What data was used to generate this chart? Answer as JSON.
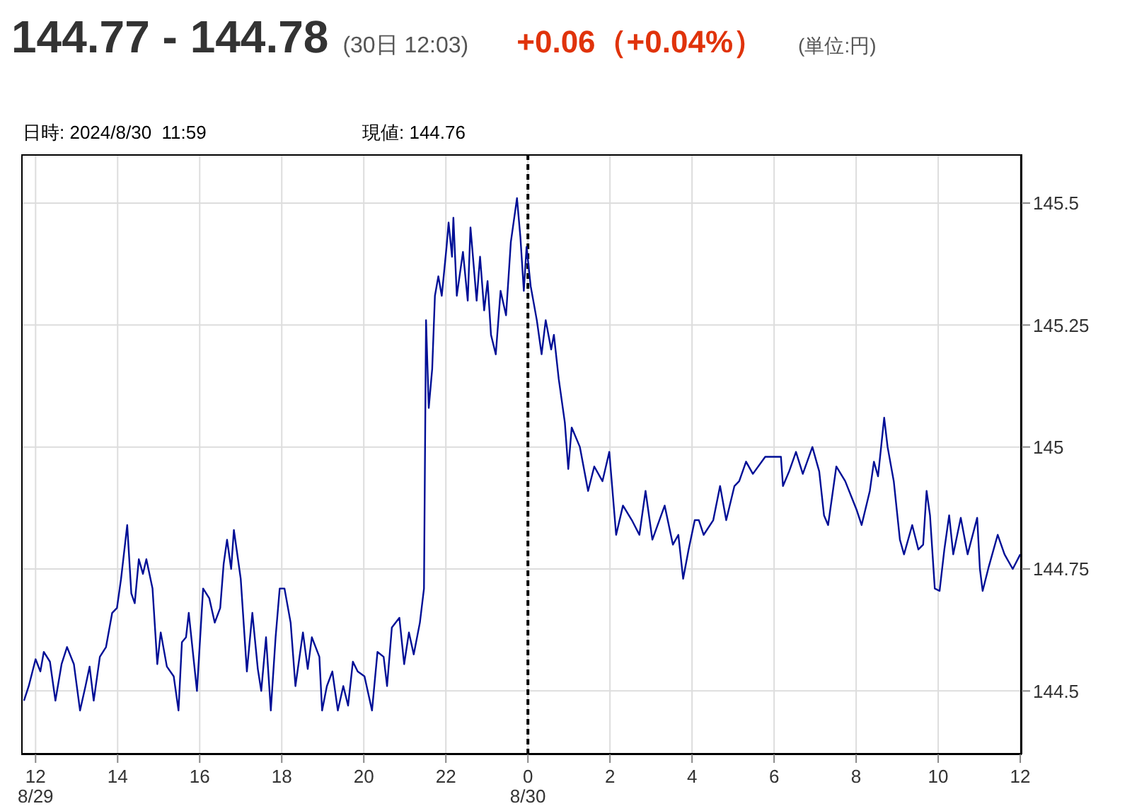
{
  "chart_data": {
    "type": "line",
    "title": "144.77 - 144.78",
    "subtitle": "(30日 12:03)",
    "annotations": [
      "+0.06（+0.04%）",
      "(単位:円)",
      "日時: 2024/8/30  11:59",
      "現値: 144.76"
    ],
    "xlim": [
      "2024-08-29T11:39",
      "2024-08-30T12:02"
    ],
    "ylim": [
      144.37,
      145.6
    ],
    "xticks": [
      {
        "value": "2024-08-29T12:00",
        "label": "12\n8/29"
      },
      {
        "value": "2024-08-29T14:00",
        "label": "14"
      },
      {
        "value": "2024-08-29T16:00",
        "label": "16"
      },
      {
        "value": "2024-08-29T18:00",
        "label": "18"
      },
      {
        "value": "2024-08-29T20:00",
        "label": "20"
      },
      {
        "value": "2024-08-29T22:00",
        "label": "22"
      },
      {
        "value": "2024-08-30T00:00",
        "label": "0\n8/30"
      },
      {
        "value": "2024-08-30T02:00",
        "label": "2"
      },
      {
        "value": "2024-08-30T04:00",
        "label": "4"
      },
      {
        "value": "2024-08-30T06:00",
        "label": "6"
      },
      {
        "value": "2024-08-30T08:00",
        "label": "8"
      },
      {
        "value": "2024-08-30T10:00",
        "label": "10"
      },
      {
        "value": "2024-08-30T12:00",
        "label": "12"
      }
    ],
    "yticks": [
      144.5,
      144.75,
      145,
      145.25,
      145.5
    ],
    "grid": true,
    "marker": "none",
    "line_style": "solid",
    "ref_lines": [
      {
        "axis": "x",
        "value": "2024-08-30T00:00",
        "color": "#000000",
        "line_style": "dashed"
      }
    ],
    "series": [
      {
        "color": "#000f96",
        "x": [
          "2024-08-29T11:43",
          "2024-08-29T11:50",
          "2024-08-29T12:00",
          "2024-08-29T12:07",
          "2024-08-29T12:12",
          "2024-08-29T12:21",
          "2024-08-29T12:29",
          "2024-08-29T12:38",
          "2024-08-29T12:46",
          "2024-08-29T12:56",
          "2024-08-29T13:05",
          "2024-08-29T13:13",
          "2024-08-29T13:19",
          "2024-08-29T13:25",
          "2024-08-29T13:34",
          "2024-08-29T13:43",
          "2024-08-29T13:52",
          "2024-08-29T13:59",
          "2024-08-29T14:05",
          "2024-08-29T14:14",
          "2024-08-29T14:20",
          "2024-08-29T14:25",
          "2024-08-29T14:31",
          "2024-08-29T14:37",
          "2024-08-29T14:42",
          "2024-08-29T14:51",
          "2024-08-29T14:58",
          "2024-08-29T15:03",
          "2024-08-29T15:12",
          "2024-08-29T15:22",
          "2024-08-29T15:29",
          "2024-08-29T15:34",
          "2024-08-29T15:40",
          "2024-08-29T15:44",
          "2024-08-29T15:56",
          "2024-08-29T16:05",
          "2024-08-29T16:14",
          "2024-08-29T16:22",
          "2024-08-29T16:30",
          "2024-08-29T16:35",
          "2024-08-29T16:40",
          "2024-08-29T16:46",
          "2024-08-29T16:50",
          "2024-08-29T17:00",
          "2024-08-29T17:09",
          "2024-08-29T17:17",
          "2024-08-29T17:25",
          "2024-08-29T17:30",
          "2024-08-29T17:37",
          "2024-08-29T17:44",
          "2024-08-29T17:51",
          "2024-08-29T17:57",
          "2024-08-29T18:04",
          "2024-08-29T18:13",
          "2024-08-29T18:20",
          "2024-08-29T18:31",
          "2024-08-29T18:38",
          "2024-08-29T18:44",
          "2024-08-29T18:55",
          "2024-08-29T18:59",
          "2024-08-29T19:06",
          "2024-08-29T19:14",
          "2024-08-29T19:22",
          "2024-08-29T19:30",
          "2024-08-29T19:37",
          "2024-08-29T19:44",
          "2024-08-29T19:51",
          "2024-08-29T20:01",
          "2024-08-29T20:12",
          "2024-08-29T20:20",
          "2024-08-29T20:29",
          "2024-08-29T20:34",
          "2024-08-29T20:41",
          "2024-08-29T20:52",
          "2024-08-29T20:59",
          "2024-08-29T21:06",
          "2024-08-29T21:13",
          "2024-08-29T21:22",
          "2024-08-29T21:28",
          "2024-08-29T21:31",
          "2024-08-29T21:35",
          "2024-08-29T21:40",
          "2024-08-29T21:44",
          "2024-08-29T21:49",
          "2024-08-29T21:54",
          "2024-08-29T22:01",
          "2024-08-29T22:04",
          "2024-08-29T22:09",
          "2024-08-29T22:11",
          "2024-08-29T22:16",
          "2024-08-29T22:25",
          "2024-08-29T22:32",
          "2024-08-29T22:36",
          "2024-08-29T22:45",
          "2024-08-29T22:50",
          "2024-08-29T22:56",
          "2024-08-29T23:01",
          "2024-08-29T23:06",
          "2024-08-29T23:13",
          "2024-08-29T23:20",
          "2024-08-29T23:28",
          "2024-08-29T23:35",
          "2024-08-29T23:44",
          "2024-08-29T23:49",
          "2024-08-29T23:54",
          "2024-08-29T23:58",
          "2024-08-30T00:04",
          "2024-08-30T00:13",
          "2024-08-30T00:20",
          "2024-08-30T00:26",
          "2024-08-30T00:34",
          "2024-08-30T00:38",
          "2024-08-30T00:45",
          "2024-08-30T00:54",
          "2024-08-30T00:59",
          "2024-08-30T01:04",
          "2024-08-30T01:16",
          "2024-08-30T01:28",
          "2024-08-30T01:37",
          "2024-08-30T01:49",
          "2024-08-30T01:59",
          "2024-08-30T02:09",
          "2024-08-30T02:19",
          "2024-08-30T02:32",
          "2024-08-30T02:43",
          "2024-08-30T02:52",
          "2024-08-30T03:02",
          "2024-08-30T03:20",
          "2024-08-30T03:32",
          "2024-08-30T03:40",
          "2024-08-30T03:47",
          "2024-08-30T03:55",
          "2024-08-30T04:04",
          "2024-08-30T04:10",
          "2024-08-30T04:17",
          "2024-08-30T04:31",
          "2024-08-30T04:41",
          "2024-08-30T04:50",
          "2024-08-30T05:02",
          "2024-08-30T05:09",
          "2024-08-30T05:19",
          "2024-08-30T05:29",
          "2024-08-30T05:47",
          "2024-08-30T06:10",
          "2024-08-30T06:13",
          "2024-08-30T06:22",
          "2024-08-30T06:32",
          "2024-08-30T06:42",
          "2024-08-30T06:56",
          "2024-08-30T07:06",
          "2024-08-30T07:13",
          "2024-08-30T07:19",
          "2024-08-30T07:31",
          "2024-08-30T07:44",
          "2024-08-30T08:01",
          "2024-08-30T08:08",
          "2024-08-30T08:20",
          "2024-08-30T08:26",
          "2024-08-30T08:32",
          "2024-08-30T08:41",
          "2024-08-30T08:46",
          "2024-08-30T08:55",
          "2024-08-30T09:04",
          "2024-08-30T09:10",
          "2024-08-30T09:22",
          "2024-08-30T09:31",
          "2024-08-30T09:38",
          "2024-08-30T09:43",
          "2024-08-30T09:48",
          "2024-08-30T09:55",
          "2024-08-30T10:02",
          "2024-08-30T10:09",
          "2024-08-30T10:16",
          "2024-08-30T10:22",
          "2024-08-30T10:33",
          "2024-08-30T10:43",
          "2024-08-30T10:57",
          "2024-08-30T11:01",
          "2024-08-30T11:05",
          "2024-08-30T11:14",
          "2024-08-30T11:27",
          "2024-08-30T11:37",
          "2024-08-30T11:49",
          "2024-08-30T12:00"
        ],
        "values": [
          144.48,
          144.51,
          144.565,
          144.54,
          144.58,
          144.56,
          144.48,
          144.555,
          144.59,
          144.555,
          144.46,
          144.51,
          144.55,
          144.48,
          144.57,
          144.59,
          144.66,
          144.67,
          144.73,
          144.84,
          144.7,
          144.68,
          144.77,
          144.74,
          144.77,
          144.71,
          144.555,
          144.62,
          144.55,
          144.53,
          144.46,
          144.6,
          144.61,
          144.66,
          144.5,
          144.71,
          144.69,
          144.64,
          144.67,
          144.76,
          144.81,
          144.75,
          144.83,
          144.73,
          144.54,
          144.66,
          144.545,
          144.5,
          144.61,
          144.46,
          144.61,
          144.71,
          144.71,
          144.64,
          144.51,
          144.62,
          144.545,
          144.61,
          144.57,
          144.46,
          144.51,
          144.54,
          144.46,
          144.51,
          144.47,
          144.56,
          144.54,
          144.53,
          144.46,
          144.58,
          144.57,
          144.51,
          144.63,
          144.65,
          144.555,
          144.62,
          144.575,
          144.64,
          144.71,
          145.26,
          145.08,
          145.16,
          145.31,
          145.35,
          145.31,
          145.41,
          145.46,
          145.39,
          145.47,
          145.31,
          145.4,
          145.3,
          145.45,
          145.3,
          145.39,
          145.28,
          145.34,
          145.23,
          145.19,
          145.32,
          145.27,
          145.42,
          145.51,
          145.43,
          145.32,
          145.41,
          145.33,
          145.26,
          145.19,
          145.26,
          145.2,
          145.23,
          145.14,
          145.05,
          144.955,
          145.04,
          145.0,
          144.91,
          144.96,
          144.93,
          144.99,
          144.82,
          144.88,
          144.85,
          144.82,
          144.91,
          144.81,
          144.88,
          144.8,
          144.82,
          144.73,
          144.79,
          144.85,
          144.85,
          144.82,
          144.85,
          144.92,
          144.85,
          144.92,
          144.93,
          144.97,
          144.945,
          144.98,
          144.98,
          144.92,
          144.95,
          144.99,
          144.945,
          145.0,
          144.95,
          144.86,
          144.84,
          144.96,
          144.93,
          144.87,
          144.84,
          144.91,
          144.97,
          144.94,
          145.06,
          145.0,
          144.93,
          144.81,
          144.78,
          144.84,
          144.79,
          144.8,
          144.91,
          144.86,
          144.71,
          144.705,
          144.79,
          144.86,
          144.78,
          144.855,
          144.78,
          144.855,
          144.75,
          144.705,
          144.755,
          144.82,
          144.78,
          144.75,
          144.78
        ]
      }
    ]
  }
}
